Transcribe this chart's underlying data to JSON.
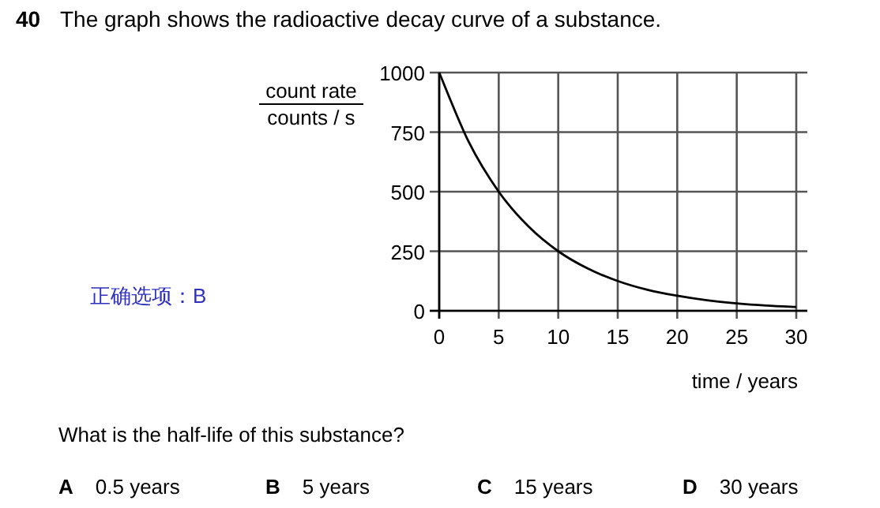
{
  "chart_data": {
    "type": "line",
    "title": "The graph shows the radioactive decay curve of a substance.",
    "xlabel": "time / years",
    "ylabel": "count rate\ncounts / s",
    "x": [
      0,
      2.5,
      5,
      7.5,
      10,
      12.5,
      15,
      17.5,
      20,
      22.5,
      25,
      27.5,
      30
    ],
    "series": [
      {
        "color": "#000000",
        "values": [
          1000,
          707,
          500,
          354,
          250,
          177,
          125,
          88,
          63,
          44,
          31,
          22,
          16
        ]
      }
    ],
    "xlim": [
      0,
      30
    ],
    "ylim": [
      0,
      1000
    ],
    "xticks": [
      0,
      5,
      10,
      15,
      20,
      25,
      30
    ],
    "yticks": [
      0,
      250,
      500,
      750,
      1000
    ],
    "grid": true,
    "annotations": [
      "40",
      "正确选项：B",
      "What is the half-life of this substance?",
      "A 0.5 years",
      "B 5 years",
      "C 15 years",
      "D 30 years"
    ]
  }
}
